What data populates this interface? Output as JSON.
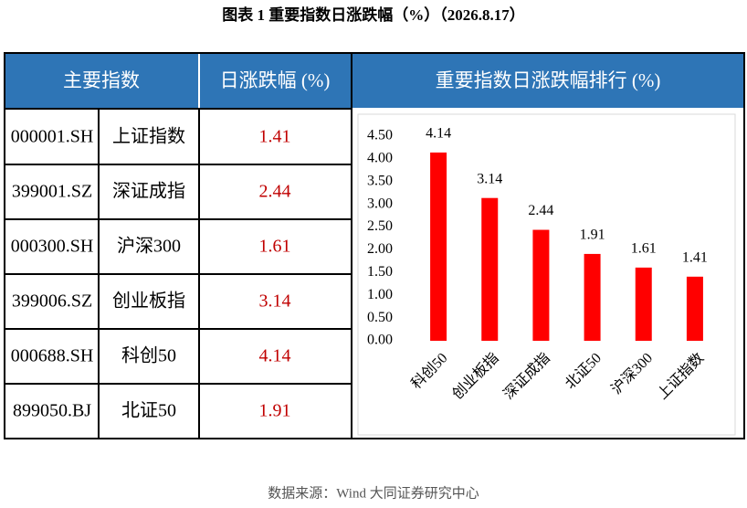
{
  "title": "图表 1  重要指数日涨跌幅（%）（2026.8.17）",
  "table": {
    "header": [
      "主要指数",
      "日涨跌幅 (%)"
    ],
    "rows": [
      [
        "000001.SH",
        "上证指数",
        "1.41"
      ],
      [
        "399001.SZ",
        "深证成指",
        "2.44"
      ],
      [
        "000300.SH",
        "沪深300",
        "1.61"
      ],
      [
        "399006.SZ",
        "创业板指",
        "3.14"
      ],
      [
        "000688.SH",
        "科创50",
        "4.14"
      ],
      [
        "899050.BJ",
        "北证50",
        "1.91"
      ]
    ]
  },
  "chart_data": {
    "type": "bar",
    "title": "重要指数日涨跌幅排行 (%)",
    "categories": [
      "科创50",
      "创业板指",
      "深证成指",
      "北证50",
      "沪深300",
      "上证指数"
    ],
    "values": [
      4.14,
      3.14,
      2.44,
      1.91,
      1.61,
      1.41
    ],
    "color": "#ff0000",
    "ylim": [
      0,
      4.5
    ],
    "yticks": [
      {
        "value": 0,
        "label": "0.00"
      },
      {
        "value": 0.5,
        "label": "0.50"
      },
      {
        "value": 1,
        "label": "1.00"
      },
      {
        "value": 1.5,
        "label": "1.50"
      },
      {
        "value": 2,
        "label": "2.00"
      },
      {
        "value": 2.5,
        "label": "2.50"
      },
      {
        "value": 3,
        "label": "3.00"
      },
      {
        "value": 3.5,
        "label": "3.50"
      },
      {
        "value": 4,
        "label": "4.00"
      },
      {
        "value": 4.5,
        "label": "4.50"
      }
    ],
    "grid": false
  },
  "source": "数据来源：Wind 大同证券研究中心"
}
